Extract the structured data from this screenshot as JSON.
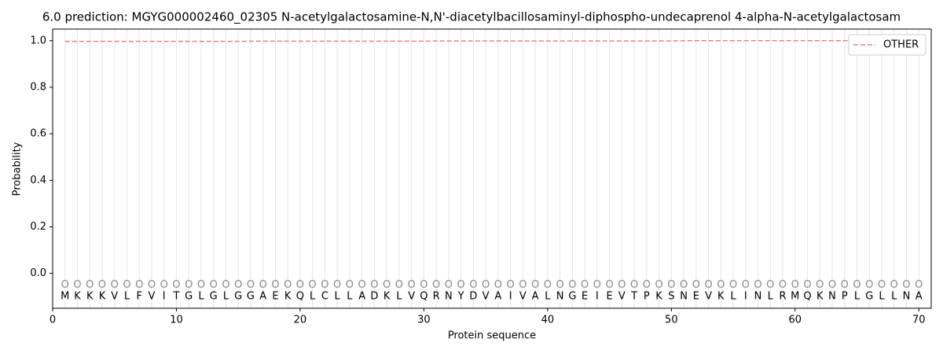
{
  "chart_data": {
    "type": "line",
    "title": "6.0 prediction: MGYG000002460_02305 N-acetylgalactosamine-N,N'-diacetylbacillosaminyl-diphospho-undecaprenol 4-alpha-N-acetylgalactosam",
    "x_label": "Protein sequence",
    "y_label": "Probability",
    "x": [
      1,
      2,
      3,
      4,
      5,
      6,
      7,
      8,
      9,
      10,
      11,
      12,
      13,
      14,
      15,
      16,
      17,
      18,
      19,
      20,
      21,
      22,
      23,
      24,
      25,
      26,
      27,
      28,
      29,
      30,
      31,
      32,
      33,
      34,
      35,
      36,
      37,
      38,
      39,
      40,
      41,
      42,
      43,
      44,
      45,
      46,
      47,
      48,
      49,
      50,
      51,
      52,
      53,
      54,
      55,
      56,
      57,
      58,
      59,
      60,
      61,
      62,
      63,
      64,
      65,
      66,
      67,
      68,
      69,
      70
    ],
    "sequence": [
      "M",
      "K",
      "K",
      "K",
      "V",
      "L",
      "F",
      "V",
      "I",
      "T",
      "G",
      "L",
      "G",
      "L",
      "G",
      "G",
      "A",
      "E",
      "K",
      "Q",
      "L",
      "C",
      "L",
      "L",
      "A",
      "D",
      "K",
      "L",
      "V",
      "Q",
      "R",
      "N",
      "Y",
      "D",
      "V",
      "A",
      "I",
      "V",
      "A",
      "L",
      "N",
      "G",
      "E",
      "I",
      "E",
      "V",
      "T",
      "P",
      "K",
      "S",
      "N",
      "E",
      "V",
      "K",
      "L",
      "I",
      "N",
      "L",
      "R",
      "M",
      "Q",
      "K",
      "N",
      "P",
      "L",
      "G",
      "L",
      "L",
      "N",
      "A"
    ],
    "predicted_labels": [
      "O",
      "O",
      "O",
      "O",
      "O",
      "O",
      "O",
      "O",
      "O",
      "O",
      "O",
      "O",
      "O",
      "O",
      "O",
      "O",
      "O",
      "O",
      "O",
      "O",
      "O",
      "O",
      "O",
      "O",
      "O",
      "O",
      "O",
      "O",
      "O",
      "O",
      "O",
      "O",
      "O",
      "O",
      "O",
      "O",
      "O",
      "O",
      "O",
      "O",
      "O",
      "O",
      "O",
      "O",
      "O",
      "O",
      "O",
      "O",
      "O",
      "O",
      "O",
      "O",
      "O",
      "O",
      "O",
      "O",
      "O",
      "O",
      "O",
      "O",
      "O",
      "O",
      "O",
      "O",
      "O",
      "O",
      "O",
      "O",
      "O",
      "O"
    ],
    "series": [
      {
        "name": "OTHER",
        "color": "#f08080",
        "dashed": true,
        "values": [
          0.997,
          0.997,
          0.997,
          0.997,
          0.997,
          0.997,
          0.997,
          0.997,
          0.997,
          0.997,
          0.997,
          0.997,
          0.997,
          0.997,
          0.997,
          0.998,
          0.998,
          0.998,
          0.998,
          0.998,
          0.998,
          0.998,
          0.998,
          0.998,
          0.998,
          0.998,
          0.998,
          0.998,
          0.998,
          0.998,
          0.999,
          0.999,
          0.999,
          0.999,
          0.999,
          0.999,
          0.999,
          0.999,
          0.999,
          0.999,
          0.999,
          0.999,
          0.999,
          0.999,
          0.999,
          0.999,
          0.999,
          0.999,
          0.999,
          0.999,
          1.0,
          1.0,
          1.0,
          1.0,
          1.0,
          1.0,
          1.0,
          1.0,
          1.0,
          1.0,
          1.0,
          1.0,
          1.0,
          1.0,
          1.0,
          1.0,
          1.0,
          1.0,
          1.0,
          1.0
        ]
      }
    ],
    "xlim": [
      0,
      71
    ],
    "ylim": [
      -0.15,
      1.05
    ],
    "xticks": [
      0,
      10,
      20,
      30,
      40,
      50,
      60,
      70
    ],
    "yticks": [
      {
        "value": 0,
        "label": "0.0"
      },
      {
        "value": 0.2,
        "label": "0.2"
      },
      {
        "value": 0.4,
        "label": "0.4"
      },
      {
        "value": 0.6,
        "label": "0.6"
      },
      {
        "value": 0.8,
        "label": "0.8"
      },
      {
        "value": 1,
        "label": "1.0"
      }
    ],
    "label_y": -0.05,
    "residue_y": -0.1,
    "legend": "upper right"
  }
}
